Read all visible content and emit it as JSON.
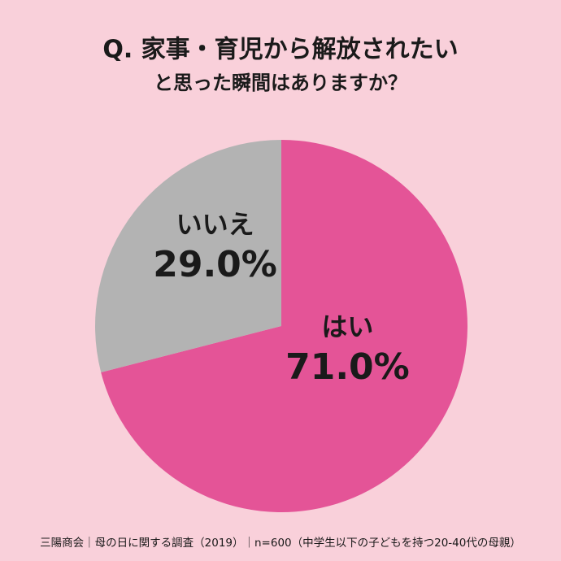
{
  "chart_data": {
    "type": "pie",
    "title": "Q. 家事・育児から解放されたい",
    "subtitle": "と思った瞬間はありますか？",
    "categories": [
      "はい",
      "いいえ"
    ],
    "values": [
      71.0,
      29.0
    ],
    "value_labels": [
      "71.0%",
      "29.0%"
    ],
    "colors": [
      "#e45497",
      "#b3b3b3"
    ],
    "source": "三陽商会｜母の日に関する調査（2019）｜n=600（中学生以下の子どもを持つ20-40代の母親）"
  }
}
